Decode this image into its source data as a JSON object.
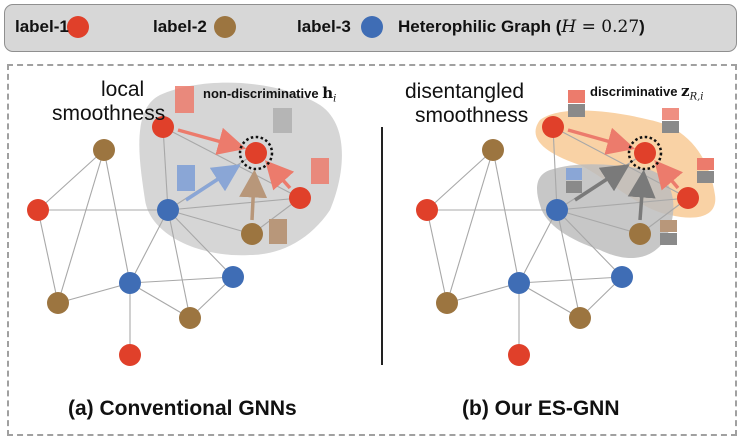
{
  "legend": {
    "items": [
      {
        "label": "label-1",
        "color": "#e0402a"
      },
      {
        "label": "label-2",
        "color": "#9c7540"
      },
      {
        "label": "label-3",
        "color": "#3f6db5"
      }
    ],
    "graph_title": "Heterophilic Graph (",
    "graph_math_var": "H",
    "graph_math_rest": " = 0.27",
    "graph_close": ")"
  },
  "panel_a": {
    "label_line1": "local",
    "label_line2": "smoothness",
    "annotation": "non-discriminative ",
    "annotation_math": "h",
    "annotation_sub": "i",
    "caption": "(a) Conventional GNNs"
  },
  "panel_b": {
    "label_line1": "disentangled",
    "label_line2": "smoothness",
    "annotation": "discriminative ",
    "annotation_math": "z",
    "annotation_sub": "R,i",
    "caption": "(b) Our ES-GNN"
  },
  "colors": {
    "red": "#e0402a",
    "brown": "#9c7540",
    "blue": "#3f6db5",
    "gray_region": "#c9c9c9",
    "orange_region": "#f7c98e"
  }
}
